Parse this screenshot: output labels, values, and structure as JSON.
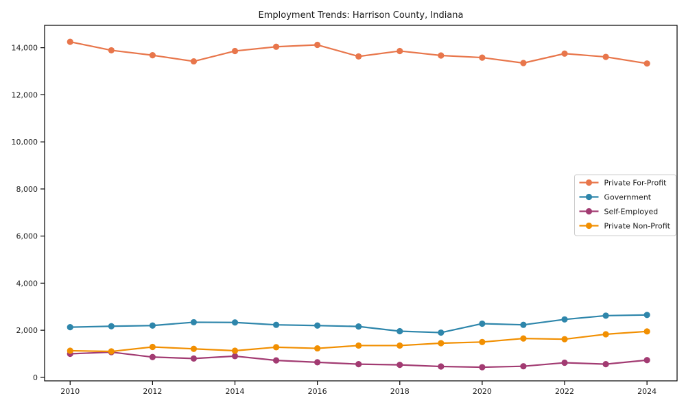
{
  "chart_data": {
    "type": "line",
    "title": "Employment Trends: Harrison County, Indiana",
    "xlabel": "",
    "ylabel": "",
    "x": [
      2010,
      2011,
      2012,
      2013,
      2014,
      2015,
      2016,
      2017,
      2018,
      2019,
      2020,
      2021,
      2022,
      2023,
      2024
    ],
    "series": [
      {
        "name": "Private For-Profit",
        "color": "#E8764B",
        "values": [
          14250,
          13890,
          13680,
          13420,
          13860,
          14040,
          14120,
          13630,
          13860,
          13670,
          13580,
          13350,
          13750,
          13610,
          13330
        ]
      },
      {
        "name": "Government",
        "color": "#2E86AB",
        "values": [
          2130,
          2170,
          2200,
          2340,
          2330,
          2230,
          2200,
          2160,
          1960,
          1900,
          2280,
          2230,
          2460,
          2620,
          2650
        ]
      },
      {
        "name": "Self-Employed",
        "color": "#A23B72",
        "values": [
          1000,
          1070,
          860,
          800,
          900,
          720,
          640,
          560,
          530,
          460,
          430,
          470,
          620,
          560,
          730
        ]
      },
      {
        "name": "Private Non-Profit",
        "color": "#F18F01",
        "values": [
          1130,
          1100,
          1290,
          1210,
          1130,
          1280,
          1230,
          1350,
          1350,
          1450,
          1500,
          1650,
          1620,
          1830,
          1950
        ]
      }
    ],
    "xticks": [
      2010,
      2012,
      2014,
      2016,
      2018,
      2020,
      2022,
      2024
    ],
    "xtick_labels": [
      "2010",
      "2012",
      "2014",
      "2016",
      "2018",
      "2020",
      "2022",
      "2024"
    ],
    "yticks": [
      0,
      2000,
      4000,
      6000,
      8000,
      10000,
      12000,
      14000
    ],
    "ytick_labels": [
      "0",
      "2,000",
      "4,000",
      "6,000",
      "8,000",
      "10,000",
      "12,000",
      "14,000"
    ],
    "xlim": [
      2009.38,
      2024.73
    ],
    "ylim": [
      -150,
      14950
    ],
    "grid": false,
    "legend_position": "center right",
    "marker": "circle",
    "background": "#ffffff"
  }
}
